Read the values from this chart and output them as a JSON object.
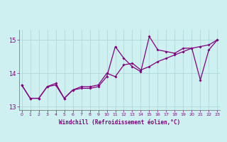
{
  "xlabel": "Windchill (Refroidissement éolien,°C)",
  "x": [
    0,
    1,
    2,
    3,
    4,
    5,
    6,
    7,
    8,
    9,
    10,
    11,
    12,
    13,
    14,
    15,
    16,
    17,
    18,
    19,
    20,
    21,
    22,
    23
  ],
  "line1": [
    13.65,
    13.25,
    13.25,
    13.6,
    13.65,
    13.25,
    13.5,
    13.55,
    13.55,
    13.6,
    13.9,
    14.8,
    14.45,
    14.2,
    14.05,
    15.1,
    14.7,
    14.65,
    14.6,
    14.75,
    14.75,
    13.8,
    14.7,
    15.0
  ],
  "line2": [
    13.65,
    13.25,
    13.25,
    13.6,
    13.7,
    13.25,
    13.5,
    13.6,
    13.6,
    13.65,
    14.0,
    13.9,
    14.25,
    14.3,
    14.1,
    14.2,
    14.35,
    14.45,
    14.55,
    14.65,
    14.75,
    14.8,
    14.85,
    15.0
  ],
  "line_color": "#800080",
  "bg_color": "#cff0f0",
  "grid_color": "#aad4d4",
  "axis_color": "#666666",
  "label_color": "#800080",
  "ylim": [
    12.9,
    15.3
  ],
  "yticks": [
    13,
    14,
    15
  ],
  "xlim": [
    0,
    23
  ],
  "figwidth": 3.2,
  "figheight": 2.0,
  "dpi": 100
}
